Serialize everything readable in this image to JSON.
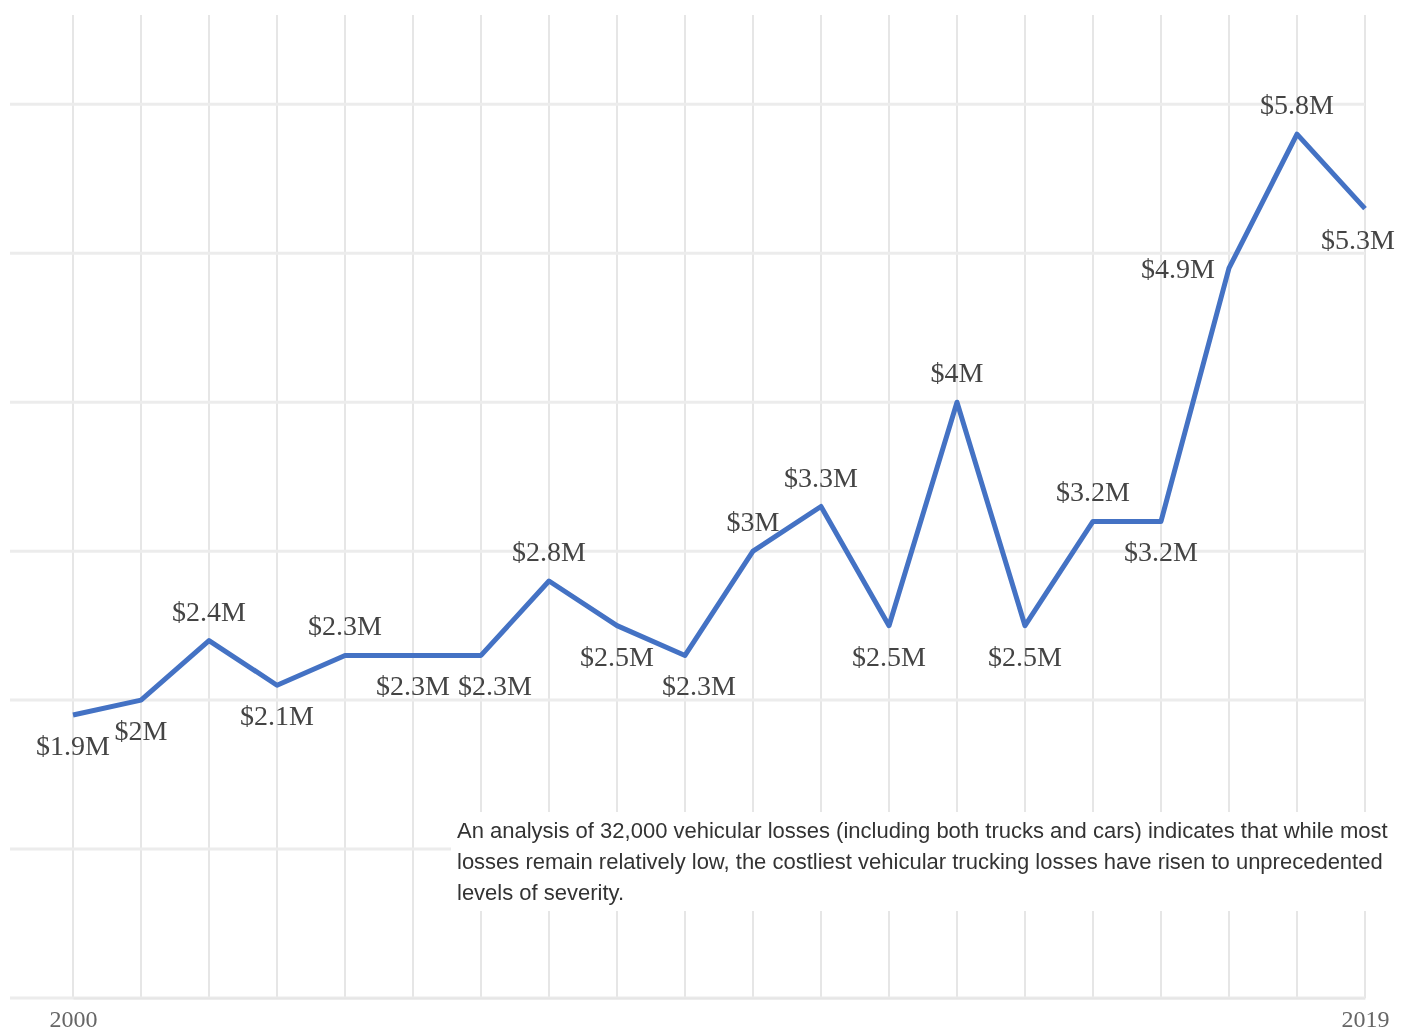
{
  "chart_data": {
    "type": "line",
    "x": [
      2000,
      2001,
      2002,
      2003,
      2004,
      2005,
      2006,
      2007,
      2008,
      2009,
      2010,
      2011,
      2012,
      2013,
      2014,
      2015,
      2016,
      2017,
      2018,
      2019
    ],
    "series": [
      {
        "color": "#4472c4",
        "values": [
          1.9,
          2.0,
          2.4,
          2.1,
          2.3,
          2.3,
          2.3,
          2.8,
          2.5,
          2.3,
          3.0,
          3.3,
          2.5,
          4.0,
          2.5,
          3.2,
          3.2,
          4.9,
          5.8,
          5.3
        ],
        "value_labels": [
          "$1.9M",
          "$2M",
          "$2.4M",
          "$2.1M",
          "$2.3M",
          "$2.3M",
          "$2.3M",
          "$2.8M",
          "$2.5M",
          "$2.3M",
          "$3M",
          "$3.3M",
          "$2.5M",
          "$4M",
          "$2.5M",
          "$3.2M",
          "$3.2M",
          "$4.9M",
          "$5.8M",
          "$5.3M"
        ]
      }
    ],
    "xlim": [
      2000,
      2019
    ],
    "xticks": [
      2000,
      {
        "value": 2001,
        "label": null
      },
      {
        "value": 2002,
        "label": null
      },
      {
        "value": 2003,
        "label": null
      },
      {
        "value": 2004,
        "label": null
      },
      {
        "value": 2005,
        "label": null
      },
      {
        "value": 2006,
        "label": null
      },
      {
        "value": 2007,
        "label": null
      },
      {
        "value": 2008,
        "label": null
      },
      {
        "value": 2009,
        "label": null
      },
      {
        "value": 2010,
        "label": null
      },
      {
        "value": 2011,
        "label": null
      },
      {
        "value": 2012,
        "label": null
      },
      {
        "value": 2013,
        "label": null
      },
      {
        "value": 2014,
        "label": null
      },
      {
        "value": 2015,
        "label": null
      },
      {
        "value": 2016,
        "label": null
      },
      {
        "value": 2017,
        "label": null
      },
      {
        "value": 2018,
        "label": null
      },
      2019
    ],
    "ylim": [
      0,
      6.6
    ],
    "yticks": [
      {
        "value": 0,
        "label": null
      },
      {
        "value": 1,
        "label": null
      },
      {
        "value": 2,
        "label": null
      },
      {
        "value": 3,
        "label": null
      },
      {
        "value": 4,
        "label": null
      },
      {
        "value": 5,
        "label": null
      },
      {
        "value": 6,
        "label": null
      }
    ],
    "grid": true,
    "tick_labels": "x",
    "marker": "none",
    "line_style": "solid",
    "annotations": [
      "An analysis of 32,000 vehicular losses (including both trucks and cars) indicates that while most losses remain relatively low, the costliest vehicular trucking losses have risen to unprecedented levels of severity."
    ]
  }
}
